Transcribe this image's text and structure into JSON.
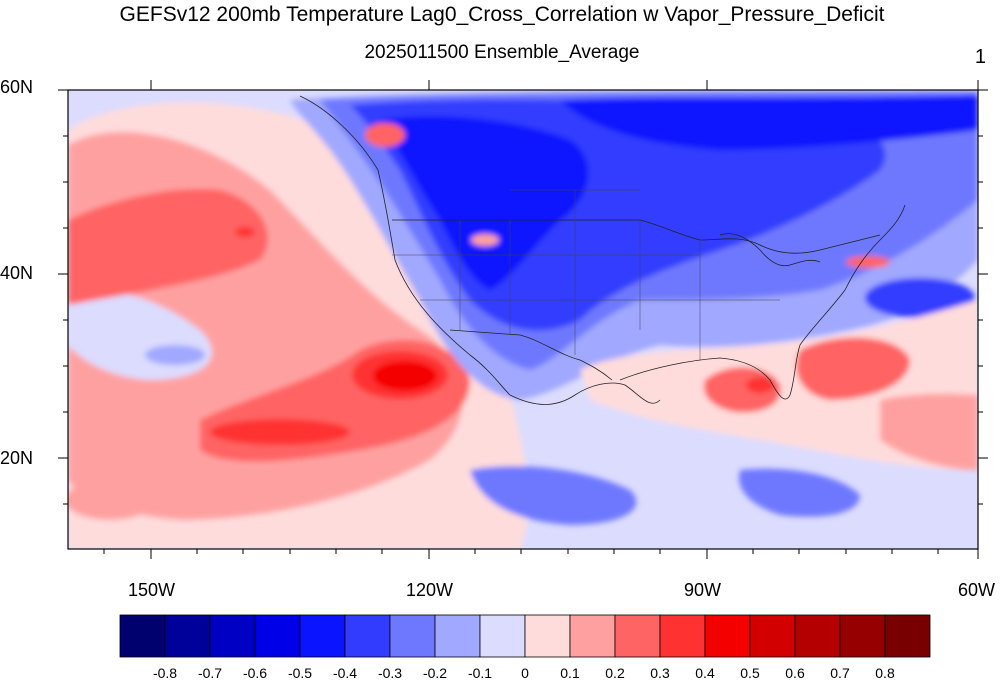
{
  "title": "GEFSv12 200mb Temperature Lag0_Cross_Correlation w Vapor_Pressure_Deficit",
  "subtitle": "2025011500 Ensemble_Average",
  "panel_number": "1",
  "lat_labels": [
    "60N",
    "40N",
    "20N"
  ],
  "lon_labels": [
    "150W",
    "120W",
    "90W",
    "60W"
  ],
  "colorbar": {
    "labels": [
      "-0.8",
      "-0.7",
      "-0.6",
      "-0.5",
      "-0.4",
      "-0.3",
      "-0.2",
      "-0.1",
      "0",
      "0.1",
      "0.2",
      "0.3",
      "0.4",
      "0.5",
      "0.6",
      "0.7",
      "0.8"
    ],
    "colors": [
      "#00006e",
      "#00009a",
      "#0000c4",
      "#0000e8",
      "#0a14ff",
      "#323cff",
      "#6e78ff",
      "#a0a8ff",
      "#dcdcff",
      "#ffdcdc",
      "#ffa0a0",
      "#ff6464",
      "#ff3232",
      "#f50000",
      "#d20000",
      "#b40000",
      "#960000",
      "#780000"
    ]
  },
  "map": {
    "lon_range": [
      -160,
      -60
    ],
    "lat_range": [
      10,
      60
    ],
    "background_color": "#dcdcff"
  }
}
